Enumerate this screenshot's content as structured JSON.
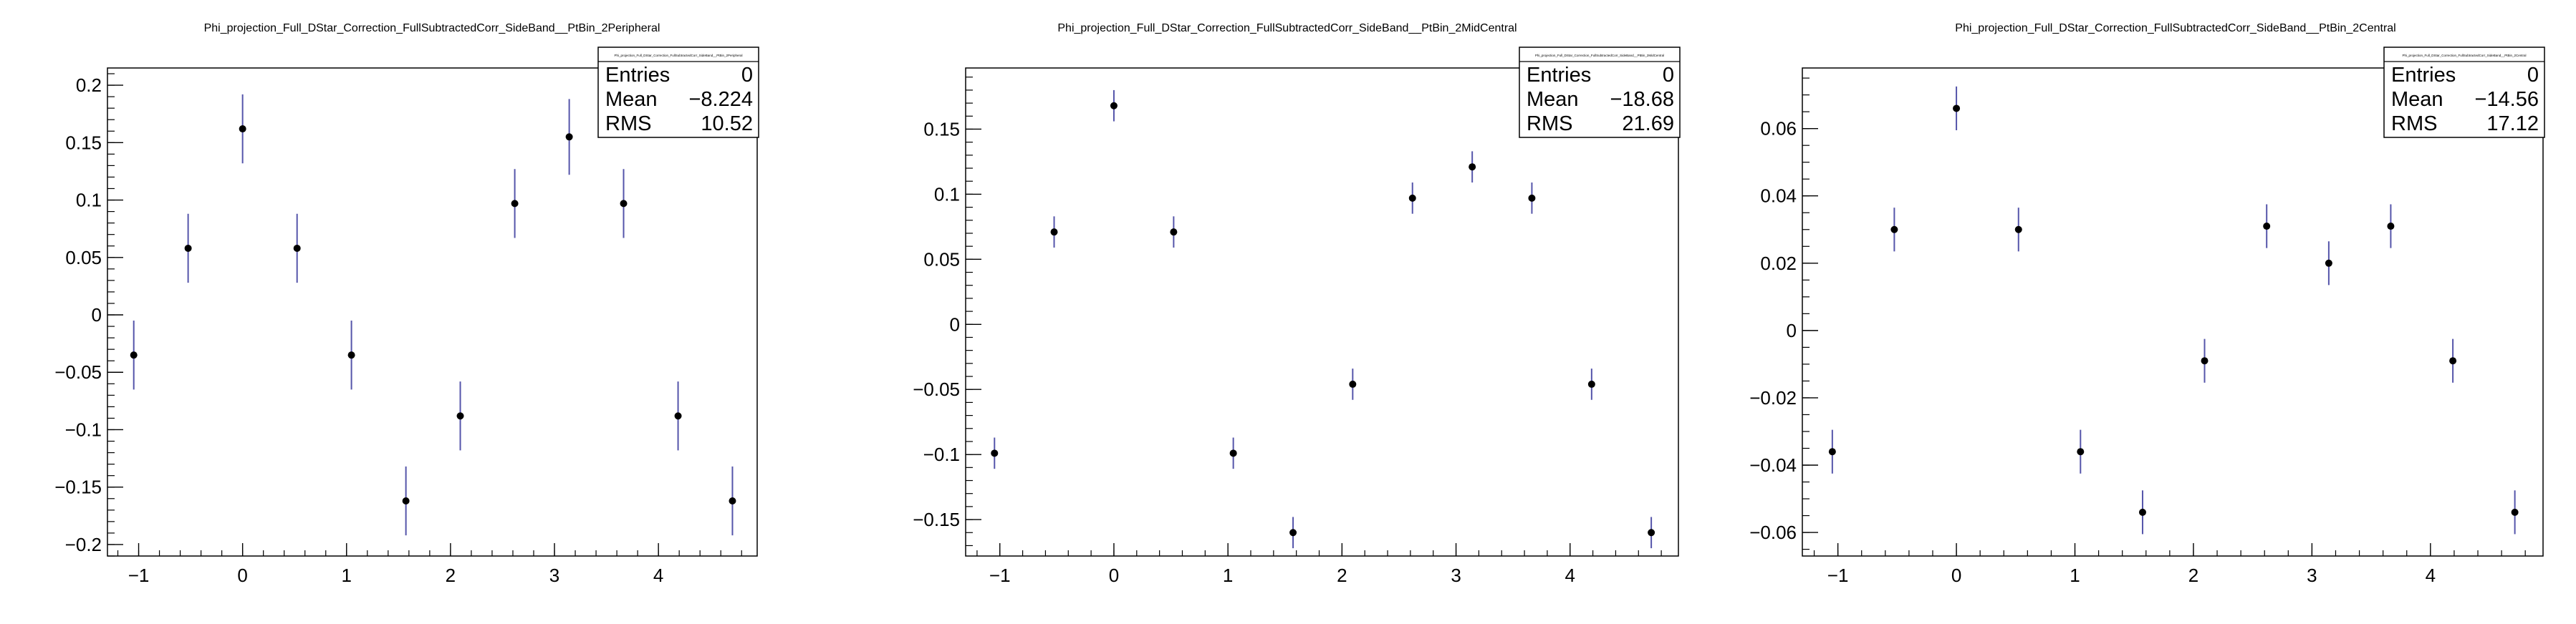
{
  "chart_data": [
    {
      "type": "scatter",
      "title": "Phi_projection_Full_DStar_Correction_FullSubtractedCorr_SideBand__PtBin_2Peripheral",
      "stats_title": "Phi_projection_Full_DStar_Correction_FullSubtractedCorr_SideBand__PtBin_2Peripheral",
      "stats": [
        {
          "label": "Entries",
          "value": "0"
        },
        {
          "label": "Mean",
          "value": "−8.224"
        },
        {
          "label": "RMS",
          "value": "10.52"
        }
      ],
      "xlim": [
        -1.3,
        4.95
      ],
      "ylim": [
        -0.21,
        0.215
      ],
      "x_ticks": [
        -1,
        0,
        1,
        2,
        3,
        4
      ],
      "x_tick_labels": [
        "−1",
        "0",
        "1",
        "2",
        "3",
        "4"
      ],
      "y_ticks": [
        -0.2,
        -0.15,
        -0.1,
        -0.05,
        0,
        0.05,
        0.1,
        0.15,
        0.2
      ],
      "y_tick_labels": [
        "−0.2",
        "−0.15",
        "−0.1",
        "−0.05",
        "0",
        "0.05",
        "0.1",
        "0.15",
        "0.2"
      ],
      "x_minor_step": 0.2,
      "y_minor_step": 0.01,
      "series": [
        {
          "x": [
            -1.047,
            -0.524,
            0,
            0.524,
            1.047,
            1.571,
            2.094,
            2.618,
            3.142,
            3.665,
            4.189,
            4.712
          ],
          "y": [
            -0.035,
            0.058,
            0.162,
            0.058,
            -0.035,
            -0.162,
            -0.088,
            0.097,
            0.155,
            0.097,
            -0.088,
            -0.162
          ],
          "err": [
            0.03,
            0.03,
            0.03,
            0.03,
            0.03,
            0.03,
            0.03,
            0.03,
            0.033,
            0.03,
            0.03,
            0.03
          ],
          "marker_color": "#000000",
          "err_color": "#5555aa"
        }
      ]
    },
    {
      "type": "scatter",
      "title": "Phi_projection_Full_DStar_Correction_FullSubtractedCorr_SideBand__PtBin_2MidCentral",
      "stats_title": "Phi_projection_Full_DStar_Correction_FullSubtractedCorr_SideBand__PtBin_2MidCentral",
      "stats": [
        {
          "label": "Entries",
          "value": "0"
        },
        {
          "label": "Mean",
          "value": "−18.68"
        },
        {
          "label": "RMS",
          "value": "21.69"
        }
      ],
      "xlim": [
        -1.3,
        4.95
      ],
      "ylim": [
        -0.178,
        0.197
      ],
      "x_ticks": [
        -1,
        0,
        1,
        2,
        3,
        4
      ],
      "x_tick_labels": [
        "−1",
        "0",
        "1",
        "2",
        "3",
        "4"
      ],
      "y_ticks": [
        -0.15,
        -0.1,
        -0.05,
        0,
        0.05,
        0.1,
        0.15
      ],
      "y_tick_labels": [
        "−0.15",
        "−0.1",
        "−0.05",
        "0",
        "0.05",
        "0.1",
        "0.15"
      ],
      "x_minor_step": 0.2,
      "y_minor_step": 0.01,
      "series": [
        {
          "x": [
            -1.047,
            -0.524,
            0,
            0.524,
            1.047,
            1.571,
            2.094,
            2.618,
            3.142,
            3.665,
            4.189,
            4.712
          ],
          "y": [
            -0.099,
            0.071,
            0.168,
            0.071,
            -0.099,
            -0.16,
            -0.046,
            0.097,
            0.121,
            0.097,
            -0.046,
            -0.16
          ],
          "err": [
            0.012,
            0.012,
            0.012,
            0.012,
            0.012,
            0.012,
            0.012,
            0.012,
            0.012,
            0.012,
            0.012,
            0.012
          ],
          "marker_color": "#000000",
          "err_color": "#5555aa"
        }
      ]
    },
    {
      "type": "scatter",
      "title": "Phi_projection_Full_DStar_Correction_FullSubtractedCorr_SideBand__PtBin_2Central",
      "stats_title": "Phi_projection_Full_DStar_Correction_FullSubtractedCorr_SideBand__PtBin_2Central",
      "stats": [
        {
          "label": "Entries",
          "value": "0"
        },
        {
          "label": "Mean",
          "value": "−14.56"
        },
        {
          "label": "RMS",
          "value": "17.12"
        }
      ],
      "xlim": [
        -1.3,
        4.95
      ],
      "ylim": [
        -0.067,
        0.078
      ],
      "x_ticks": [
        -1,
        0,
        1,
        2,
        3,
        4
      ],
      "x_tick_labels": [
        "−1",
        "0",
        "1",
        "2",
        "3",
        "4"
      ],
      "y_ticks": [
        -0.06,
        -0.04,
        -0.02,
        0,
        0.02,
        0.04,
        0.06
      ],
      "y_tick_labels": [
        "−0.06",
        "−0.04",
        "−0.02",
        "0",
        "0.02",
        "0.04",
        "0.06"
      ],
      "x_minor_step": 0.2,
      "y_minor_step": 0.005,
      "series": [
        {
          "x": [
            -1.047,
            -0.524,
            0,
            0.524,
            1.047,
            1.571,
            2.094,
            2.618,
            3.142,
            3.665,
            4.189,
            4.712
          ],
          "y": [
            -0.036,
            0.03,
            0.066,
            0.03,
            -0.036,
            -0.054,
            -0.009,
            0.031,
            0.02,
            0.031,
            -0.009,
            -0.054
          ],
          "err": [
            0.0065,
            0.0065,
            0.0065,
            0.0065,
            0.0065,
            0.0065,
            0.0065,
            0.0065,
            0.0065,
            0.0065,
            0.0065,
            0.0065
          ],
          "marker_color": "#000000",
          "err_color": "#5555aa"
        }
      ]
    }
  ]
}
